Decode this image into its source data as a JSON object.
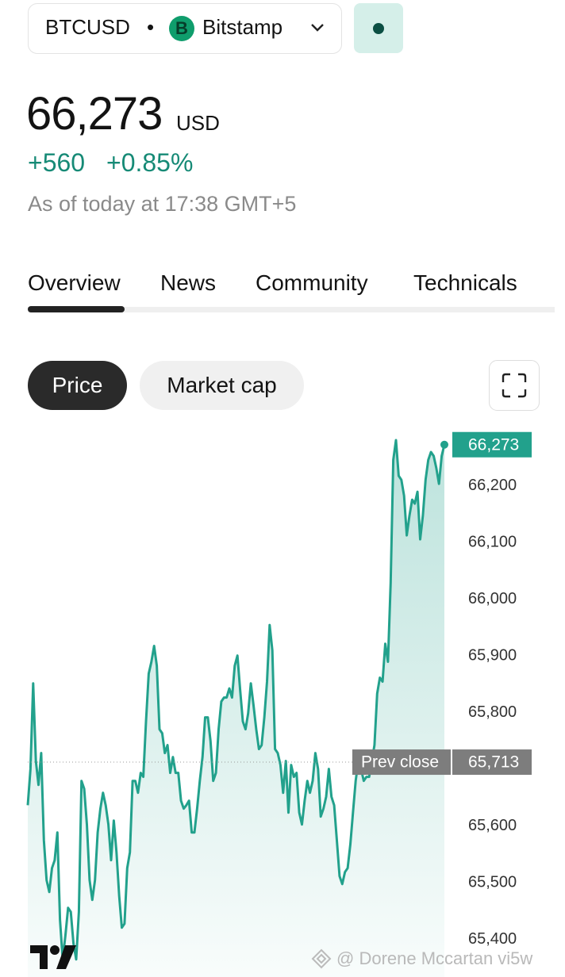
{
  "header": {
    "symbol": "BTCUSD",
    "separator": "•",
    "exchange_icon": "B",
    "exchange": "Bitstamp"
  },
  "quote": {
    "price": "66,273",
    "currency": "USD",
    "change": "+560",
    "change_percent": "+0.85%",
    "as_of": "As of today at 17:38 GMT+5"
  },
  "tabs": [
    "Overview",
    "News",
    "Community",
    "Technicals"
  ],
  "chart_buttons": [
    "Price",
    "Market cap"
  ],
  "chart_data": {
    "type": "line",
    "color": "#22a18c",
    "values": [
      65637,
      65701,
      65852,
      65715,
      65673,
      65729,
      65575,
      65505,
      65484,
      65526,
      65540,
      65589,
      65435,
      65365,
      65407,
      65456,
      65449,
      65393,
      65365,
      65449,
      65680,
      65666,
      65603,
      65505,
      65470,
      65505,
      65589,
      65631,
      65659,
      65637,
      65603,
      65540,
      65610,
      65554,
      65477,
      65421,
      65428,
      65526,
      65554,
      65680,
      65680,
      65659,
      65694,
      65687,
      65785,
      65869,
      65890,
      65918,
      65883,
      65771,
      65764,
      65729,
      65743,
      65694,
      65722,
      65694,
      65694,
      65645,
      65631,
      65637,
      65645,
      65589,
      65589,
      65631,
      65680,
      65722,
      65792,
      65792,
      65750,
      65680,
      65694,
      65771,
      65820,
      65827,
      65827,
      65843,
      65827,
      65883,
      65901,
      65841,
      65785,
      65771,
      65799,
      65852,
      65813,
      65771,
      65736,
      65743,
      65792,
      65855,
      65955,
      65910,
      65736,
      65729,
      65708,
      65659,
      65715,
      65624,
      65708,
      65687,
      65694,
      65624,
      65603,
      65645,
      65680,
      65659,
      65680,
      65729,
      65701,
      65617,
      65631,
      65652,
      65701,
      65652,
      65637,
      65575,
      65512,
      65498,
      65519,
      65526,
      65568,
      65624,
      65680,
      65715,
      65701,
      65680,
      65687,
      65687,
      65715,
      65743,
      65834,
      65862,
      65855,
      65922,
      65890,
      66029,
      66246,
      66281,
      66218,
      66211,
      66183,
      66113,
      66148,
      66176,
      66169,
      66190,
      66106,
      66148,
      66211,
      66246,
      66260,
      66253,
      66232,
      66204,
      66253,
      66273
    ],
    "ylim": [
      65334,
      66302
    ],
    "yticks": [
      {
        "value": 65400,
        "label": "65,400"
      },
      {
        "value": 65500,
        "label": "65,500"
      },
      {
        "value": 65600,
        "label": "65,600"
      },
      {
        "value": 65800,
        "label": "65,800"
      },
      {
        "value": 65900,
        "label": "65,900"
      },
      {
        "value": 66000,
        "label": "66,000"
      },
      {
        "value": 66100,
        "label": "66,100"
      },
      {
        "value": 66200,
        "label": "66,200"
      }
    ],
    "prev_close": {
      "name": "Prev close",
      "value": 65713,
      "label": "65,713"
    },
    "current": {
      "value": 66273,
      "label": "66,273"
    }
  },
  "watermark": "@ Dorene Mccartan vi5w"
}
